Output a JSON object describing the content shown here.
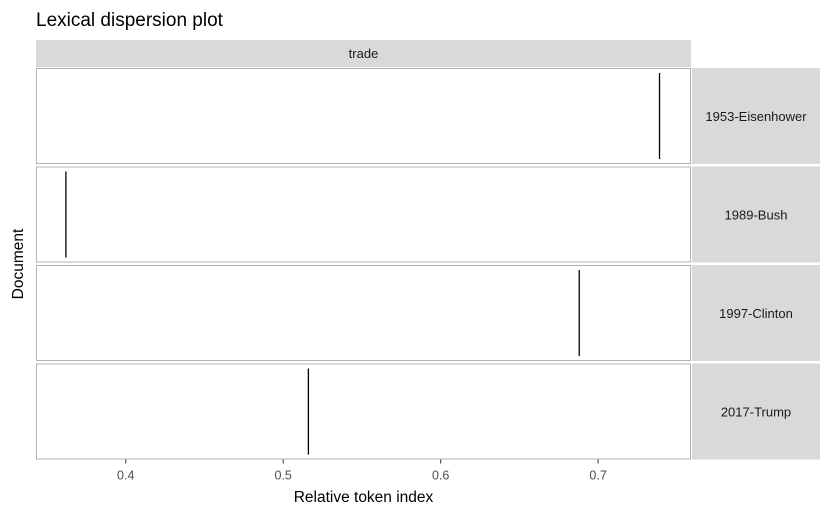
{
  "chart_data": {
    "type": "scatter",
    "title": "Lexical dispersion plot",
    "xlabel": "Relative token index",
    "ylabel": "Document",
    "facet_column": "trade",
    "x_ticks": [
      "0.4",
      "0.5",
      "0.6",
      "0.7"
    ],
    "xlim": [
      0.343,
      0.759
    ],
    "grid": false,
    "documents": [
      "1953-Eisenhower",
      "1989-Bush",
      "1997-Clinton",
      "2017-Trump"
    ],
    "series": [
      {
        "document": "1953-Eisenhower",
        "term": "trade",
        "x": [
          0.739
        ]
      },
      {
        "document": "1989-Bush",
        "term": "trade",
        "x": [
          0.362
        ]
      },
      {
        "document": "1997-Clinton",
        "term": "trade",
        "x": [
          0.688
        ]
      },
      {
        "document": "2017-Trump",
        "term": "trade",
        "x": [
          0.516
        ]
      }
    ],
    "colors": {
      "strip": "#d9d9d9",
      "mark": "#000000",
      "panel_border": "#b3b3b3"
    }
  }
}
